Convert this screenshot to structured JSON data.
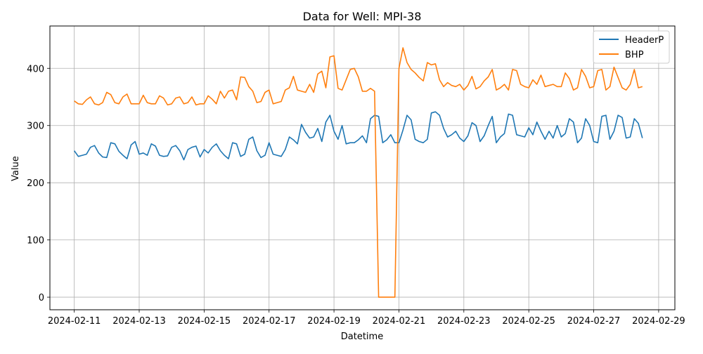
{
  "chart_data": {
    "type": "line",
    "title": "Data for Well: MPI-38",
    "xlabel": "Datetime",
    "ylabel": "Value",
    "grid": true,
    "legend_position": "top-right",
    "xlim": [
      "2024-02-10T06:00",
      "2024-02-29T12:00"
    ],
    "ylim": [
      -22,
      474
    ],
    "x_ticks": [
      "2024-02-11",
      "2024-02-13",
      "2024-02-15",
      "2024-02-17",
      "2024-02-19",
      "2024-02-21",
      "2024-02-23",
      "2024-02-25",
      "2024-02-27",
      "2024-02-29"
    ],
    "y_ticks": [
      0,
      100,
      200,
      300,
      400
    ],
    "colors": {
      "HeaderP": "#1f77b4",
      "BHP": "#ff7f0e"
    },
    "series": [
      {
        "name": "HeaderP",
        "x": [
          "2024-02-11T00:00",
          "2024-02-11T03:00",
          "2024-02-11T06:00",
          "2024-02-11T09:00",
          "2024-02-11T12:00",
          "2024-02-11T15:00",
          "2024-02-11T18:00",
          "2024-02-11T21:00",
          "2024-02-12T00:00",
          "2024-02-12T03:00",
          "2024-02-12T06:00",
          "2024-02-12T09:00",
          "2024-02-12T12:00",
          "2024-02-12T15:00",
          "2024-02-12T18:00",
          "2024-02-12T21:00",
          "2024-02-13T00:00",
          "2024-02-13T03:00",
          "2024-02-13T06:00",
          "2024-02-13T09:00",
          "2024-02-13T12:00",
          "2024-02-13T15:00",
          "2024-02-13T18:00",
          "2024-02-13T21:00",
          "2024-02-14T00:00",
          "2024-02-14T03:00",
          "2024-02-14T06:00",
          "2024-02-14T09:00",
          "2024-02-14T12:00",
          "2024-02-14T15:00",
          "2024-02-14T18:00",
          "2024-02-14T21:00",
          "2024-02-15T00:00",
          "2024-02-15T03:00",
          "2024-02-15T06:00",
          "2024-02-15T09:00",
          "2024-02-15T12:00",
          "2024-02-15T15:00",
          "2024-02-15T18:00",
          "2024-02-15T21:00",
          "2024-02-16T00:00",
          "2024-02-16T03:00",
          "2024-02-16T06:00",
          "2024-02-16T09:00",
          "2024-02-16T12:00",
          "2024-02-16T15:00",
          "2024-02-16T18:00",
          "2024-02-16T21:00",
          "2024-02-17T00:00",
          "2024-02-17T03:00",
          "2024-02-17T06:00",
          "2024-02-17T09:00",
          "2024-02-17T12:00",
          "2024-02-17T15:00",
          "2024-02-17T18:00",
          "2024-02-17T21:00",
          "2024-02-18T00:00",
          "2024-02-18T03:00",
          "2024-02-18T06:00",
          "2024-02-18T09:00",
          "2024-02-18T12:00",
          "2024-02-18T15:00",
          "2024-02-18T18:00",
          "2024-02-18T21:00",
          "2024-02-19T00:00",
          "2024-02-19T03:00",
          "2024-02-19T06:00",
          "2024-02-19T09:00",
          "2024-02-19T12:00",
          "2024-02-19T15:00",
          "2024-02-19T18:00",
          "2024-02-19T21:00",
          "2024-02-20T00:00",
          "2024-02-20T03:00",
          "2024-02-20T06:00",
          "2024-02-20T09:00",
          "2024-02-20T12:00",
          "2024-02-20T15:00",
          "2024-02-20T18:00",
          "2024-02-20T21:00",
          "2024-02-21T00:00",
          "2024-02-21T03:00",
          "2024-02-21T06:00",
          "2024-02-21T09:00",
          "2024-02-21T12:00",
          "2024-02-21T15:00",
          "2024-02-21T18:00",
          "2024-02-21T21:00",
          "2024-02-22T00:00",
          "2024-02-22T03:00",
          "2024-02-22T06:00",
          "2024-02-22T09:00",
          "2024-02-22T12:00",
          "2024-02-22T15:00",
          "2024-02-22T18:00",
          "2024-02-22T21:00",
          "2024-02-23T00:00",
          "2024-02-23T03:00",
          "2024-02-23T06:00",
          "2024-02-23T09:00",
          "2024-02-23T12:00",
          "2024-02-23T15:00",
          "2024-02-23T18:00",
          "2024-02-23T21:00",
          "2024-02-24T00:00",
          "2024-02-24T03:00",
          "2024-02-24T06:00",
          "2024-02-24T09:00",
          "2024-02-24T12:00",
          "2024-02-24T15:00",
          "2024-02-24T18:00",
          "2024-02-24T21:00",
          "2024-02-25T00:00",
          "2024-02-25T03:00",
          "2024-02-25T06:00",
          "2024-02-25T09:00",
          "2024-02-25T12:00",
          "2024-02-25T15:00",
          "2024-02-25T18:00",
          "2024-02-25T21:00",
          "2024-02-26T00:00",
          "2024-02-26T03:00",
          "2024-02-26T06:00",
          "2024-02-26T09:00",
          "2024-02-26T12:00",
          "2024-02-26T15:00",
          "2024-02-26T18:00",
          "2024-02-26T21:00",
          "2024-02-27T00:00",
          "2024-02-27T03:00",
          "2024-02-27T06:00",
          "2024-02-27T09:00",
          "2024-02-27T12:00",
          "2024-02-27T15:00",
          "2024-02-27T18:00",
          "2024-02-27T21:00",
          "2024-02-28T00:00",
          "2024-02-28T03:00",
          "2024-02-28T06:00",
          "2024-02-28T09:00",
          "2024-02-28T12:00"
        ],
        "values": [
          256,
          246,
          248,
          250,
          262,
          265,
          252,
          245,
          244,
          270,
          268,
          255,
          248,
          242,
          266,
          272,
          250,
          252,
          248,
          268,
          264,
          248,
          246,
          247,
          262,
          265,
          256,
          240,
          258,
          262,
          264,
          245,
          258,
          252,
          262,
          268,
          256,
          248,
          242,
          270,
          268,
          246,
          250,
          276,
          280,
          256,
          244,
          248,
          270,
          250,
          248,
          246,
          258,
          280,
          275,
          268,
          302,
          288,
          278,
          280,
          295,
          272,
          306,
          318,
          290,
          276,
          300,
          268,
          270,
          270,
          275,
          282,
          270,
          312,
          318,
          316,
          270,
          275,
          284,
          270,
          270,
          292,
          318,
          310,
          276,
          272,
          270,
          276,
          322,
          324,
          318,
          295,
          280,
          284,
          290,
          278,
          272,
          282,
          305,
          300,
          272,
          282,
          300,
          316,
          270,
          280,
          286,
          320,
          318,
          284,
          282,
          280,
          296,
          284,
          306,
          290,
          276,
          290,
          278,
          300,
          280,
          286,
          312,
          306,
          270,
          278,
          312,
          300,
          272,
          270,
          316,
          318,
          276,
          290,
          318,
          314,
          278,
          280,
          312,
          304,
          278
        ]
      },
      {
        "name": "BHP",
        "x": [
          "2024-02-11T00:00",
          "2024-02-11T03:00",
          "2024-02-11T06:00",
          "2024-02-11T09:00",
          "2024-02-11T12:00",
          "2024-02-11T15:00",
          "2024-02-11T18:00",
          "2024-02-11T21:00",
          "2024-02-12T00:00",
          "2024-02-12T03:00",
          "2024-02-12T06:00",
          "2024-02-12T09:00",
          "2024-02-12T12:00",
          "2024-02-12T15:00",
          "2024-02-12T18:00",
          "2024-02-12T21:00",
          "2024-02-13T00:00",
          "2024-02-13T03:00",
          "2024-02-13T06:00",
          "2024-02-13T09:00",
          "2024-02-13T12:00",
          "2024-02-13T15:00",
          "2024-02-13T18:00",
          "2024-02-13T21:00",
          "2024-02-14T00:00",
          "2024-02-14T03:00",
          "2024-02-14T06:00",
          "2024-02-14T09:00",
          "2024-02-14T12:00",
          "2024-02-14T15:00",
          "2024-02-14T18:00",
          "2024-02-14T21:00",
          "2024-02-15T00:00",
          "2024-02-15T03:00",
          "2024-02-15T06:00",
          "2024-02-15T09:00",
          "2024-02-15T12:00",
          "2024-02-15T15:00",
          "2024-02-15T18:00",
          "2024-02-15T21:00",
          "2024-02-16T00:00",
          "2024-02-16T03:00",
          "2024-02-16T06:00",
          "2024-02-16T09:00",
          "2024-02-16T12:00",
          "2024-02-16T15:00",
          "2024-02-16T18:00",
          "2024-02-16T21:00",
          "2024-02-17T00:00",
          "2024-02-17T03:00",
          "2024-02-17T06:00",
          "2024-02-17T09:00",
          "2024-02-17T12:00",
          "2024-02-17T15:00",
          "2024-02-17T18:00",
          "2024-02-17T21:00",
          "2024-02-18T00:00",
          "2024-02-18T03:00",
          "2024-02-18T06:00",
          "2024-02-18T09:00",
          "2024-02-18T12:00",
          "2024-02-18T15:00",
          "2024-02-18T18:00",
          "2024-02-18T21:00",
          "2024-02-19T00:00",
          "2024-02-19T03:00",
          "2024-02-19T06:00",
          "2024-02-19T09:00",
          "2024-02-19T12:00",
          "2024-02-19T15:00",
          "2024-02-19T18:00",
          "2024-02-19T21:00",
          "2024-02-20T00:00",
          "2024-02-20T03:00",
          "2024-02-20T06:00",
          "2024-02-20T09:00",
          "2024-02-20T12:00",
          "2024-02-20T15:00",
          "2024-02-20T18:00",
          "2024-02-20T21:00",
          "2024-02-21T00:00",
          "2024-02-21T03:00",
          "2024-02-21T06:00",
          "2024-02-21T09:00",
          "2024-02-21T12:00",
          "2024-02-21T15:00",
          "2024-02-21T18:00",
          "2024-02-21T21:00",
          "2024-02-22T00:00",
          "2024-02-22T03:00",
          "2024-02-22T06:00",
          "2024-02-22T09:00",
          "2024-02-22T12:00",
          "2024-02-22T15:00",
          "2024-02-22T18:00",
          "2024-02-22T21:00",
          "2024-02-23T00:00",
          "2024-02-23T03:00",
          "2024-02-23T06:00",
          "2024-02-23T09:00",
          "2024-02-23T12:00",
          "2024-02-23T15:00",
          "2024-02-23T18:00",
          "2024-02-23T21:00",
          "2024-02-24T00:00",
          "2024-02-24T03:00",
          "2024-02-24T06:00",
          "2024-02-24T09:00",
          "2024-02-24T12:00",
          "2024-02-24T15:00",
          "2024-02-24T18:00",
          "2024-02-24T21:00",
          "2024-02-25T00:00",
          "2024-02-25T03:00",
          "2024-02-25T06:00",
          "2024-02-25T09:00",
          "2024-02-25T12:00",
          "2024-02-25T15:00",
          "2024-02-25T18:00",
          "2024-02-25T21:00",
          "2024-02-26T00:00",
          "2024-02-26T03:00",
          "2024-02-26T06:00",
          "2024-02-26T09:00",
          "2024-02-26T12:00",
          "2024-02-26T15:00",
          "2024-02-26T18:00",
          "2024-02-26T21:00",
          "2024-02-27T00:00",
          "2024-02-27T03:00",
          "2024-02-27T06:00",
          "2024-02-27T09:00",
          "2024-02-27T12:00",
          "2024-02-27T15:00",
          "2024-02-27T18:00",
          "2024-02-27T21:00",
          "2024-02-28T00:00",
          "2024-02-28T03:00",
          "2024-02-28T06:00",
          "2024-02-28T09:00",
          "2024-02-28T12:00"
        ],
        "values": [
          343,
          338,
          337,
          345,
          350,
          338,
          336,
          340,
          358,
          354,
          340,
          338,
          350,
          355,
          338,
          338,
          338,
          353,
          340,
          338,
          338,
          352,
          348,
          336,
          338,
          348,
          350,
          338,
          340,
          350,
          336,
          338,
          338,
          352,
          346,
          338,
          360,
          348,
          360,
          362,
          345,
          385,
          384,
          368,
          360,
          340,
          342,
          358,
          362,
          338,
          340,
          342,
          362,
          366,
          386,
          362,
          360,
          358,
          372,
          358,
          390,
          395,
          366,
          420,
          422,
          365,
          362,
          380,
          398,
          400,
          385,
          360,
          360,
          365,
          360,
          0,
          0,
          0,
          0,
          0,
          400,
          436,
          410,
          398,
          392,
          384,
          378,
          410,
          406,
          408,
          380,
          368,
          375,
          370,
          368,
          372,
          362,
          370,
          386,
          364,
          368,
          378,
          385,
          398,
          362,
          366,
          372,
          362,
          398,
          396,
          372,
          368,
          366,
          380,
          372,
          388,
          368,
          370,
          372,
          368,
          368,
          392,
          382,
          362,
          366,
          398,
          386,
          366,
          368,
          396,
          398,
          362,
          368,
          402,
          384,
          366,
          362,
          372,
          398,
          366,
          368
        ]
      }
    ]
  }
}
